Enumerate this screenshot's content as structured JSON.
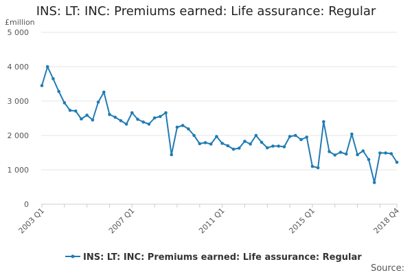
{
  "chart_data": {
    "type": "line",
    "title": "INS: LT: INC: Premiums earned: Life assurance: Regular",
    "ylabel": "£million",
    "ylim": [
      0,
      5000
    ],
    "yticks": [
      0,
      1000,
      2000,
      3000,
      4000,
      5000
    ],
    "ytick_labels": [
      "0",
      "1 000",
      "2 000",
      "3 000",
      "4 000",
      "5 000"
    ],
    "xtick_labels": [
      "2003 Q1",
      "2007 Q1",
      "2011 Q1",
      "2015 Q1",
      "2018 Q4"
    ],
    "grid": true,
    "legend_position": "bottom",
    "series": [
      {
        "name": "INS: LT: INC: Premiums earned: Life assurance: Regular",
        "color": "#1f7bb4",
        "x": [
          "2003 Q1",
          "2003 Q2",
          "2003 Q3",
          "2003 Q4",
          "2004 Q1",
          "2004 Q2",
          "2004 Q3",
          "2004 Q4",
          "2005 Q1",
          "2005 Q2",
          "2005 Q3",
          "2005 Q4",
          "2006 Q1",
          "2006 Q2",
          "2006 Q3",
          "2006 Q4",
          "2007 Q1",
          "2007 Q2",
          "2007 Q3",
          "2007 Q4",
          "2008 Q1",
          "2008 Q2",
          "2008 Q3",
          "2008 Q4",
          "2009 Q1",
          "2009 Q2",
          "2009 Q3",
          "2009 Q4",
          "2010 Q1",
          "2010 Q2",
          "2010 Q3",
          "2010 Q4",
          "2011 Q1",
          "2011 Q2",
          "2011 Q3",
          "2011 Q4",
          "2012 Q1",
          "2012 Q2",
          "2012 Q3",
          "2012 Q4",
          "2013 Q1",
          "2013 Q2",
          "2013 Q3",
          "2013 Q4",
          "2014 Q1",
          "2014 Q2",
          "2014 Q3",
          "2014 Q4",
          "2015 Q1",
          "2015 Q2",
          "2015 Q3",
          "2015 Q4",
          "2016 Q1",
          "2016 Q2",
          "2016 Q3",
          "2016 Q4",
          "2017 Q1",
          "2017 Q2",
          "2017 Q3",
          "2017 Q4",
          "2018 Q1",
          "2018 Q2",
          "2018 Q3",
          "2018 Q4"
        ],
        "values": [
          3450,
          4000,
          3650,
          3280,
          2950,
          2730,
          2710,
          2480,
          2590,
          2450,
          2970,
          3260,
          2610,
          2530,
          2430,
          2330,
          2660,
          2470,
          2390,
          2330,
          2510,
          2550,
          2660,
          1440,
          2240,
          2290,
          2190,
          2000,
          1760,
          1790,
          1750,
          1970,
          1770,
          1700,
          1600,
          1630,
          1830,
          1750,
          2000,
          1800,
          1640,
          1690,
          1690,
          1670,
          1970,
          2000,
          1880,
          1950,
          1100,
          1060,
          2400,
          1530,
          1430,
          1510,
          1460,
          2040,
          1440,
          1550,
          1300,
          630,
          1490,
          1490,
          1470,
          1220
        ]
      }
    ]
  },
  "source_label": "Source:"
}
